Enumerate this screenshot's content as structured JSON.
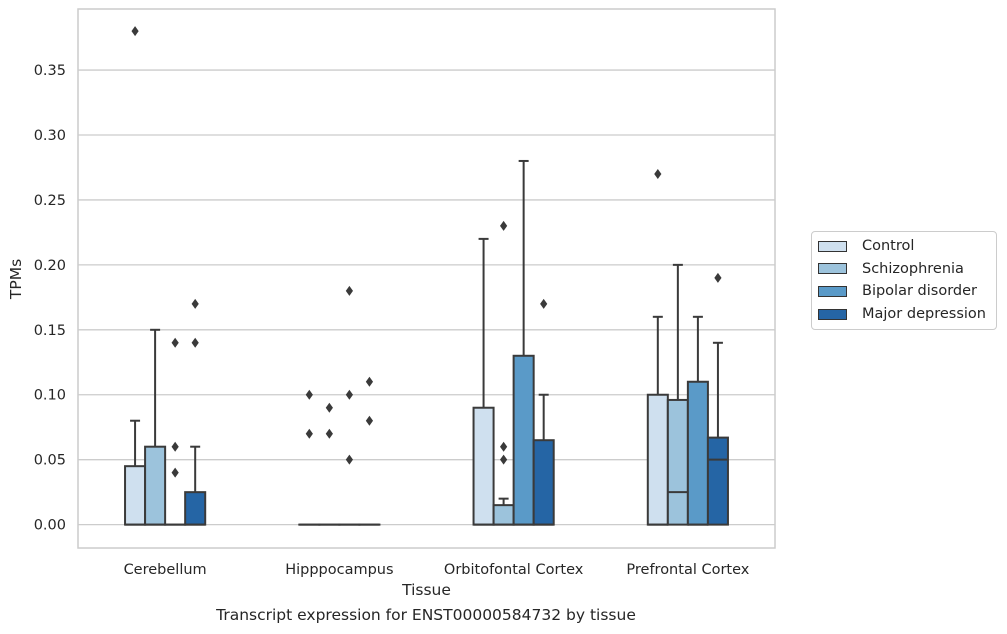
{
  "chart_data": {
    "type": "box",
    "title": "",
    "caption": "Transcript expression for ENST00000584732 by tissue",
    "xlabel": "Tissue",
    "ylabel": "TPMs",
    "ylim": [
      -0.018,
      0.397
    ],
    "yticks": [
      0.0,
      0.05,
      0.1,
      0.15,
      0.2,
      0.25,
      0.3,
      0.35
    ],
    "ytick_labels": [
      "0.00",
      "0.05",
      "0.10",
      "0.15",
      "0.20",
      "0.25",
      "0.30",
      "0.35"
    ],
    "categories": [
      "Cerebellum",
      "Hipppocampus",
      "Orbitofontal Cortex",
      "Prefrontal Cortex"
    ],
    "grid": "horizontal",
    "legend_position": "right",
    "series": [
      {
        "name": "Control",
        "color": "#cfe0ef",
        "boxes": [
          {
            "min": 0,
            "q1": 0,
            "median": 0,
            "q3": 0.045,
            "max": 0.08,
            "outliers": [
              0.38
            ]
          },
          {
            "min": 0,
            "q1": 0,
            "median": 0,
            "q3": 0,
            "max": 0,
            "outliers": [
              0.07,
              0.1
            ]
          },
          {
            "min": 0,
            "q1": 0,
            "median": 0,
            "q3": 0.09,
            "max": 0.22,
            "outliers": []
          },
          {
            "min": 0,
            "q1": 0,
            "median": 0,
            "q3": 0.1,
            "max": 0.16,
            "outliers": [
              0.27
            ]
          }
        ]
      },
      {
        "name": "Schizophrenia",
        "color": "#9cc3dc",
        "boxes": [
          {
            "min": 0,
            "q1": 0,
            "median": 0,
            "q3": 0.06,
            "max": 0.15,
            "outliers": []
          },
          {
            "min": 0,
            "q1": 0,
            "median": 0,
            "q3": 0,
            "max": 0,
            "outliers": [
              0.07,
              0.09
            ]
          },
          {
            "min": 0,
            "q1": 0,
            "median": 0,
            "q3": 0.015,
            "max": 0.02,
            "outliers": [
              0.05,
              0.06,
              0.23
            ]
          },
          {
            "min": 0,
            "q1": 0,
            "median": 0.025,
            "q3": 0.096,
            "max": 0.2,
            "outliers": []
          }
        ]
      },
      {
        "name": "Bipolar disorder",
        "color": "#5a9ac8",
        "boxes": [
          {
            "min": 0,
            "q1": 0,
            "median": 0,
            "q3": 0,
            "max": 0,
            "outliers": [
              0.04,
              0.06,
              0.14
            ]
          },
          {
            "min": 0,
            "q1": 0,
            "median": 0,
            "q3": 0,
            "max": 0,
            "outliers": [
              0.05,
              0.1,
              0.18
            ]
          },
          {
            "min": 0,
            "q1": 0,
            "median": 0,
            "q3": 0.13,
            "max": 0.28,
            "outliers": []
          },
          {
            "min": 0,
            "q1": 0,
            "median": 0,
            "q3": 0.11,
            "max": 0.16,
            "outliers": []
          }
        ]
      },
      {
        "name": "Major depression",
        "color": "#2565a5",
        "boxes": [
          {
            "min": 0,
            "q1": 0,
            "median": 0,
            "q3": 0.025,
            "max": 0.06,
            "outliers": [
              0.14,
              0.17
            ]
          },
          {
            "min": 0,
            "q1": 0,
            "median": 0,
            "q3": 0,
            "max": 0,
            "outliers": [
              0.08,
              0.11
            ]
          },
          {
            "min": 0,
            "q1": 0,
            "median": 0,
            "q3": 0.065,
            "max": 0.1,
            "outliers": [
              0.17
            ]
          },
          {
            "min": 0,
            "q1": 0,
            "median": 0.05,
            "q3": 0.067,
            "max": 0.14,
            "outliers": [
              0.19
            ]
          }
        ]
      }
    ]
  }
}
